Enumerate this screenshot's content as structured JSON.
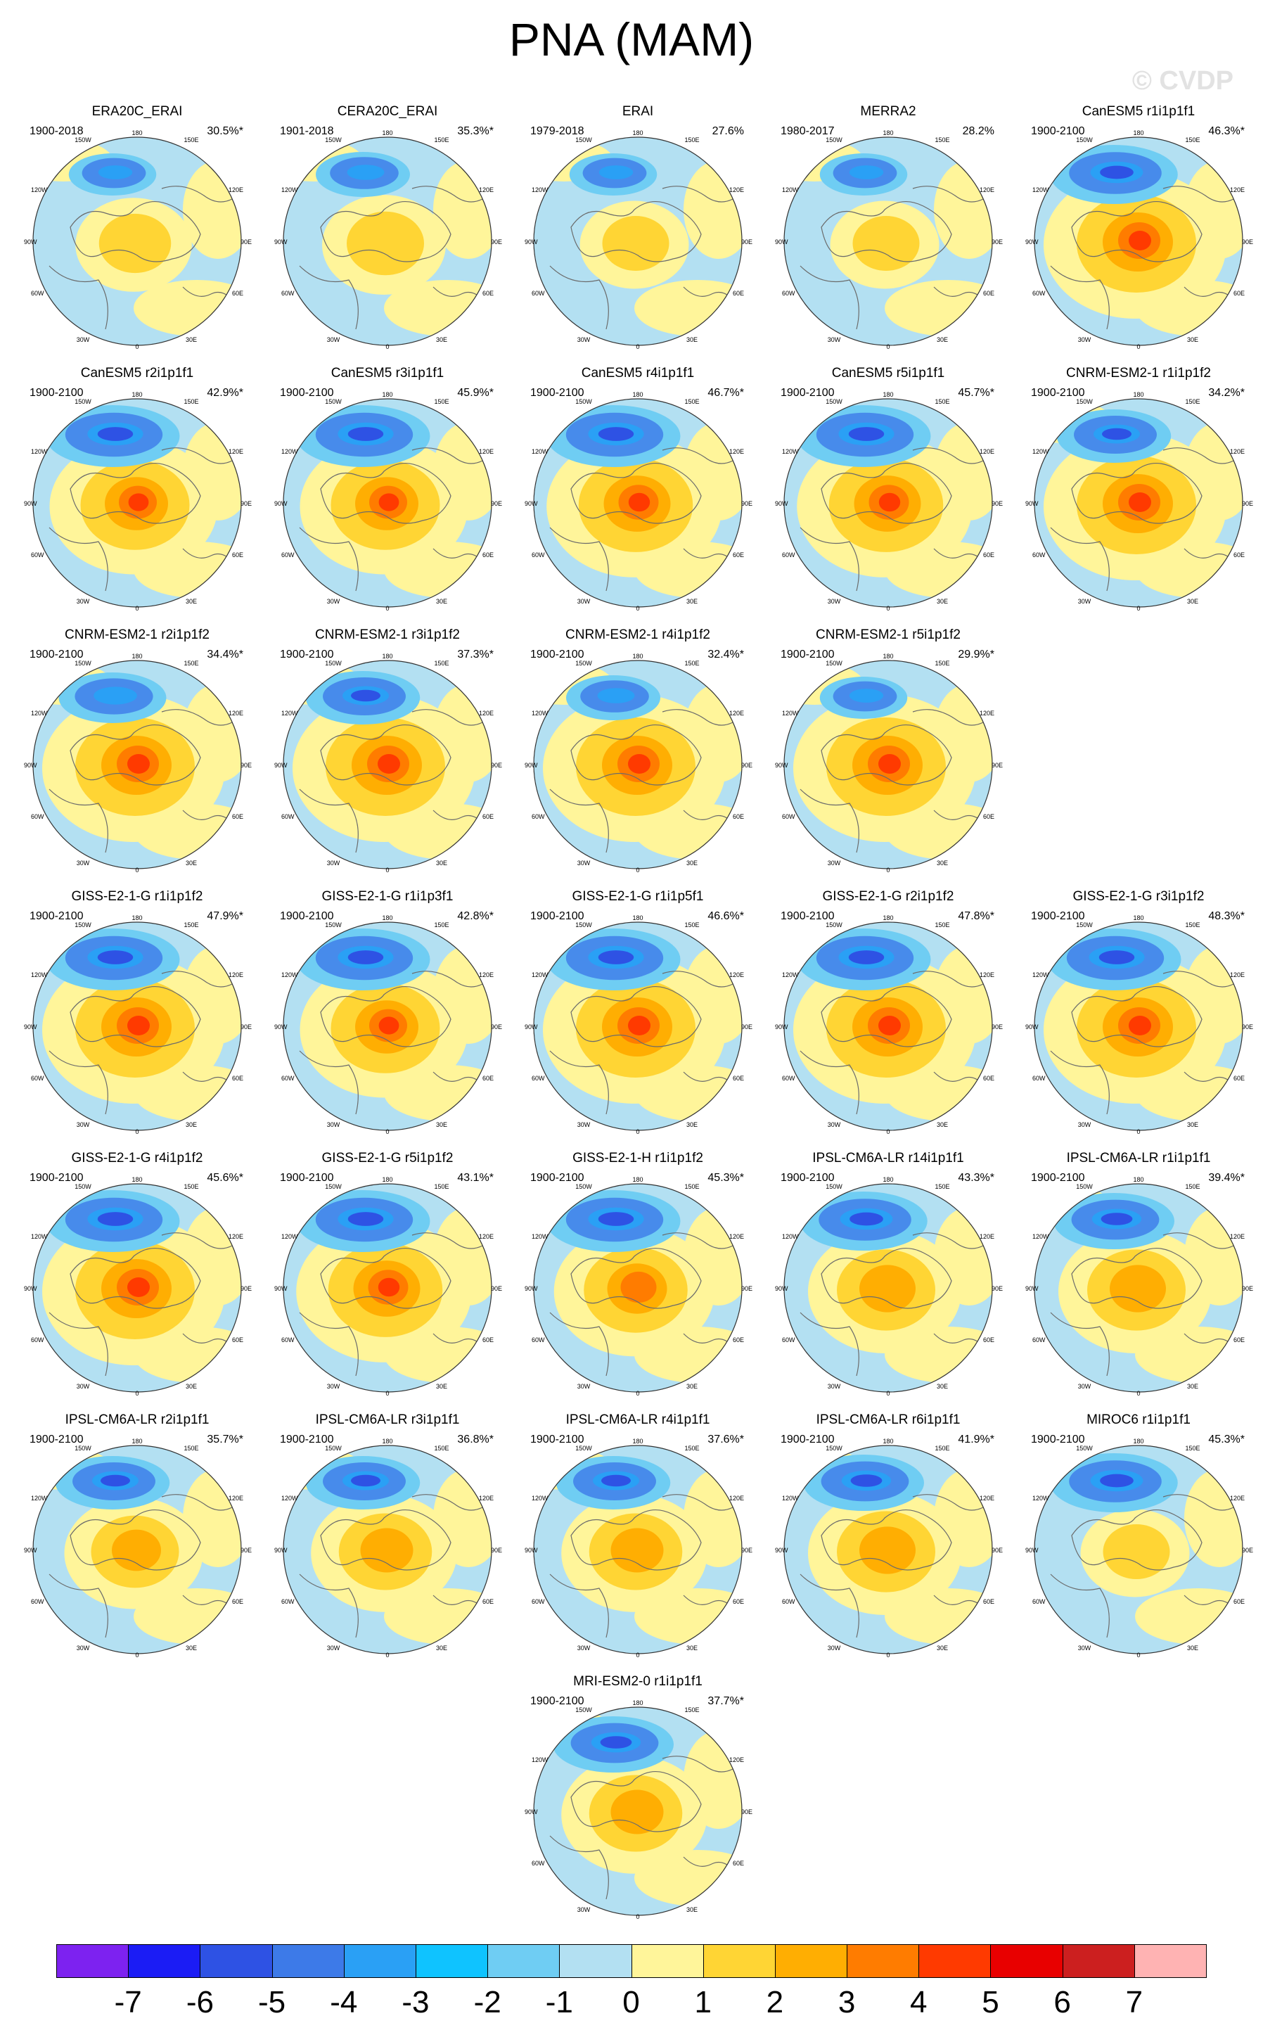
{
  "title": "PNA (MAM)",
  "watermark": "© CVDP",
  "map_labels": {
    "lon_top": "180",
    "lon_150w": "150W",
    "lon_150e": "150E",
    "lon_120w": "120W",
    "lon_120e": "120E",
    "lon_90w": "90W",
    "lon_90e": "90E",
    "lon_60w": "60W",
    "lon_60e": "60E",
    "lon_30w": "30W",
    "lon_30e": "30E",
    "lon_bottom": "0"
  },
  "panels": [
    {
      "name": "ERA20C_ERAI",
      "period": "1900-2018",
      "pct": "30.5%*",
      "pos": 0.55,
      "neg": 0.55
    },
    {
      "name": "CERA20C_ERAI",
      "period": "1901-2018",
      "pct": "35.3%*",
      "pos": 0.6,
      "neg": 0.6
    },
    {
      "name": "ERAI",
      "period": "1979-2018",
      "pct": "27.6%",
      "pos": 0.5,
      "neg": 0.55
    },
    {
      "name": "MERRA2",
      "period": "1980-2017",
      "pct": "28.2%",
      "pos": 0.5,
      "neg": 0.55
    },
    {
      "name": "CanESM5 r1i1p1f1",
      "period": "1900-2100",
      "pct": "46.3%*",
      "pos": 1.0,
      "neg": 0.85
    },
    {
      "name": "CanESM5 r2i1p1f1",
      "period": "1900-2100",
      "pct": "42.9%*",
      "pos": 0.9,
      "neg": 0.9
    },
    {
      "name": "CanESM5 r3i1p1f1",
      "period": "1900-2100",
      "pct": "45.9%*",
      "pos": 0.9,
      "neg": 0.9
    },
    {
      "name": "CanESM5 r4i1p1f1",
      "period": "1900-2100",
      "pct": "46.7%*",
      "pos": 0.95,
      "neg": 0.9
    },
    {
      "name": "CanESM5 r5i1p1f1",
      "period": "1900-2100",
      "pct": "45.7%*",
      "pos": 0.95,
      "neg": 0.9
    },
    {
      "name": "CNRM-ESM2-1 r1i1p1f2",
      "period": "1900-2100",
      "pct": "34.2%*",
      "pos": 1.0,
      "neg": 0.75
    },
    {
      "name": "CNRM-ESM2-1 r2i1p1f2",
      "period": "1900-2100",
      "pct": "34.4%*",
      "pos": 1.0,
      "neg": 0.7
    },
    {
      "name": "CNRM-ESM2-1 r3i1p1f2",
      "period": "1900-2100",
      "pct": "37.3%*",
      "pos": 1.0,
      "neg": 0.75
    },
    {
      "name": "CNRM-ESM2-1 r4i1p1f2",
      "period": "1900-2100",
      "pct": "32.4%*",
      "pos": 1.0,
      "neg": 0.6
    },
    {
      "name": "CNRM-ESM2-1 r5i1p1f2",
      "period": "1900-2100",
      "pct": "29.9%*",
      "pos": 1.0,
      "neg": 0.55
    },
    {
      "name": "GISS-E2-1-G r1i1p1f2",
      "period": "1900-2100",
      "pct": "47.9%*",
      "pos": 1.0,
      "neg": 0.9
    },
    {
      "name": "GISS-E2-1-G r1i1p3f1",
      "period": "1900-2100",
      "pct": "42.8%*",
      "pos": 0.9,
      "neg": 0.9
    },
    {
      "name": "GISS-E2-1-G r1i1p5f1",
      "period": "1900-2100",
      "pct": "46.6%*",
      "pos": 1.0,
      "neg": 0.9
    },
    {
      "name": "GISS-E2-1-G r2i1p1f2",
      "period": "1900-2100",
      "pct": "47.8%*",
      "pos": 1.0,
      "neg": 0.9
    },
    {
      "name": "GISS-E2-1-G r3i1p1f2",
      "period": "1900-2100",
      "pct": "48.3%*",
      "pos": 1.0,
      "neg": 0.9
    },
    {
      "name": "GISS-E2-1-G r4i1p1f2",
      "period": "1900-2100",
      "pct": "45.6%*",
      "pos": 1.0,
      "neg": 0.9
    },
    {
      "name": "GISS-E2-1-G r5i1p1f2",
      "period": "1900-2100",
      "pct": "43.1%*",
      "pos": 0.95,
      "neg": 0.9
    },
    {
      "name": "GISS-E2-1-H r1i1p1f2",
      "period": "1900-2100",
      "pct": "45.3%*",
      "pos": 0.85,
      "neg": 0.9
    },
    {
      "name": "IPSL-CM6A-LR r14i1p1f1",
      "period": "1900-2100",
      "pct": "43.3%*",
      "pos": 0.8,
      "neg": 0.85
    },
    {
      "name": "IPSL-CM6A-LR r1i1p1f1",
      "period": "1900-2100",
      "pct": "39.4%*",
      "pos": 0.8,
      "neg": 0.8
    },
    {
      "name": "IPSL-CM6A-LR r2i1p1f1",
      "period": "1900-2100",
      "pct": "35.7%*",
      "pos": 0.7,
      "neg": 0.75
    },
    {
      "name": "IPSL-CM6A-LR r3i1p1f1",
      "period": "1900-2100",
      "pct": "36.8%*",
      "pos": 0.75,
      "neg": 0.75
    },
    {
      "name": "IPSL-CM6A-LR r4i1p1f1",
      "period": "1900-2100",
      "pct": "37.6%*",
      "pos": 0.75,
      "neg": 0.75
    },
    {
      "name": "IPSL-CM6A-LR r6i1p1f1",
      "period": "1900-2100",
      "pct": "41.9%*",
      "pos": 0.8,
      "neg": 0.8
    },
    {
      "name": "MIROC6 r1i1p1f1",
      "period": "1900-2100",
      "pct": "45.3%*",
      "pos": 0.5,
      "neg": 0.85
    },
    {
      "name": "MRI-ESM2-0 r1i1p1f1",
      "period": "1900-2100",
      "pct": "37.7%*",
      "pos": 0.75,
      "neg": 0.8
    }
  ],
  "colorbar": {
    "colors": [
      "#7d22f0",
      "#1b1cf5",
      "#2e52e4",
      "#3d7ae8",
      "#2aa0f5",
      "#0fc3ff",
      "#6fcdf3",
      "#b3e0f2",
      "#fff59a",
      "#ffd534",
      "#ffae02",
      "#ff7c00",
      "#ff3a00",
      "#e80000",
      "#cc1f1f",
      "#ffb3b3"
    ],
    "labels": [
      "-7",
      "-6",
      "-5",
      "-4",
      "-3",
      "-2",
      "-1",
      "0",
      "1",
      "2",
      "3",
      "4",
      "5",
      "6",
      "7"
    ]
  }
}
